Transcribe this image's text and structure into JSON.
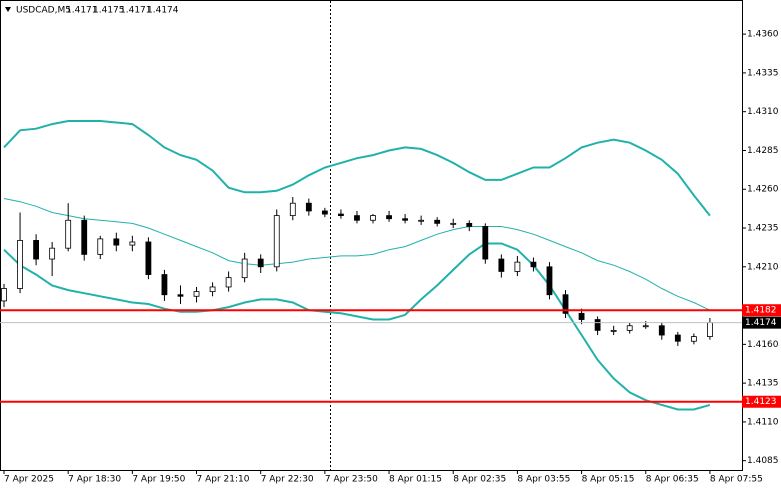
{
  "header": {
    "symbol": "USDCAD,M5",
    "open": 1.4171,
    "high": 1.4175,
    "low": 1.4171,
    "close": 1.4174
  },
  "chart_data": {
    "type": "candlestick",
    "xlim": [
      -1,
      184
    ],
    "ylim": [
      1.4079,
      1.4382
    ],
    "yticks": [
      {
        "value": 1.436,
        "label": "1.4360"
      },
      {
        "value": 1.4335,
        "label": "1.4335"
      },
      {
        "value": 1.431,
        "label": "1.4310"
      },
      {
        "value": 1.4285,
        "label": "1.4285"
      },
      {
        "value": 1.426,
        "label": "1.4260"
      },
      {
        "value": 1.4235,
        "label": "1.4235"
      },
      {
        "value": 1.421,
        "label": "1.4210"
      },
      {
        "value": 1.416,
        "label": "1.4160"
      },
      {
        "value": 1.4135,
        "label": "1.4135"
      },
      {
        "value": 1.411,
        "label": "1.4110"
      },
      {
        "value": 1.4085,
        "label": "1.4085"
      }
    ],
    "xticks": [
      {
        "value": 0,
        "label": "7 Apr 2025"
      },
      {
        "value": 16,
        "label": "7 Apr 18:30"
      },
      {
        "value": 32,
        "label": "7 Apr 19:50"
      },
      {
        "value": 48,
        "label": "7 Apr 21:10"
      },
      {
        "value": 64,
        "label": "7 Apr 22:30"
      },
      {
        "value": 80,
        "label": "7 Apr 23:50"
      },
      {
        "value": 96,
        "label": "8 Apr 01:15"
      },
      {
        "value": 112,
        "label": "8 Apr 02:35"
      },
      {
        "value": 128,
        "label": "8 Apr 03:55"
      },
      {
        "value": 144,
        "label": "8 Apr 05:15"
      },
      {
        "value": 160,
        "label": "8 Apr 06:35"
      },
      {
        "value": 176,
        "label": "8 Apr 07:55"
      }
    ],
    "x": [
      0,
      4,
      8,
      12,
      16,
      20,
      24,
      28,
      32,
      36,
      40,
      44,
      48,
      52,
      56,
      60,
      64,
      68,
      72,
      76,
      80,
      84,
      88,
      92,
      96,
      100,
      104,
      108,
      112,
      116,
      120,
      124,
      128,
      132,
      136,
      140,
      144,
      148,
      152,
      156,
      160,
      164,
      168,
      172,
      176
    ],
    "open": [
      1.4188,
      1.4196,
      1.4227,
      1.4215,
      1.4222,
      1.424,
      1.4218,
      1.4228,
      1.4224,
      1.4226,
      1.4205,
      1.4192,
      1.4191,
      1.4194,
      1.4197,
      1.4203,
      1.4215,
      1.421,
      1.4243,
      1.4251,
      1.4246,
      1.4244,
      1.4243,
      1.424,
      1.4243,
      1.4241,
      1.424,
      1.424,
      1.4238,
      1.4238,
      1.4236,
      1.4215,
      1.4207,
      1.4213,
      1.421,
      1.4192,
      1.418,
      1.4176,
      1.4169,
      1.4169,
      1.4172,
      1.4172,
      1.4166,
      1.4162,
      1.4165
    ],
    "high": [
      1.4199,
      1.4245,
      1.4231,
      1.4226,
      1.4251,
      1.4243,
      1.423,
      1.4232,
      1.423,
      1.4229,
      1.4208,
      1.4198,
      1.4197,
      1.42,
      1.4207,
      1.4219,
      1.4218,
      1.4247,
      1.4255,
      1.4254,
      1.4248,
      1.4247,
      1.4246,
      1.4244,
      1.4246,
      1.4244,
      1.4243,
      1.4242,
      1.4241,
      1.424,
      1.4238,
      1.4218,
      1.4217,
      1.4216,
      1.4213,
      1.4195,
      1.4183,
      1.4178,
      1.4172,
      1.4174,
      1.4175,
      1.4174,
      1.4168,
      1.4167,
      1.4177
    ],
    "low": [
      1.4184,
      1.4193,
      1.4211,
      1.4204,
      1.422,
      1.4214,
      1.4215,
      1.422,
      1.422,
      1.4202,
      1.4188,
      1.4186,
      1.4187,
      1.4191,
      1.4194,
      1.42,
      1.4206,
      1.4207,
      1.424,
      1.4243,
      1.4242,
      1.4241,
      1.4238,
      1.4238,
      1.4239,
      1.4238,
      1.4237,
      1.4236,
      1.4235,
      1.4233,
      1.4212,
      1.4203,
      1.4204,
      1.4207,
      1.4189,
      1.4177,
      1.4173,
      1.4166,
      1.4166,
      1.4167,
      1.417,
      1.4163,
      1.4159,
      1.416,
      1.4163
    ],
    "close": [
      1.4196,
      1.4227,
      1.4215,
      1.4222,
      1.424,
      1.4218,
      1.4228,
      1.4224,
      1.4226,
      1.4205,
      1.4192,
      1.4191,
      1.4194,
      1.4197,
      1.4203,
      1.4215,
      1.421,
      1.4243,
      1.4251,
      1.4246,
      1.4244,
      1.4243,
      1.424,
      1.4243,
      1.4241,
      1.424,
      1.424,
      1.4238,
      1.4238,
      1.4236,
      1.4215,
      1.4207,
      1.4213,
      1.421,
      1.4192,
      1.418,
      1.4176,
      1.4169,
      1.4169,
      1.4172,
      1.4172,
      1.4166,
      1.4162,
      1.4165,
      1.4174
    ],
    "up_color": "#ffffff",
    "down_color": "#000000",
    "bands": [
      {
        "color": "#20b2aa",
        "width": 2,
        "values": [
          1.4287,
          1.4298,
          1.4299,
          1.4302,
          1.4304,
          1.4304,
          1.4304,
          1.4303,
          1.4302,
          1.4295,
          1.4287,
          1.4282,
          1.4279,
          1.4272,
          1.4261,
          1.4258,
          1.4258,
          1.4259,
          1.4263,
          1.4269,
          1.4274,
          1.4277,
          1.428,
          1.4282,
          1.4285,
          1.4287,
          1.4286,
          1.4282,
          1.4277,
          1.4271,
          1.4266,
          1.4266,
          1.427,
          1.4274,
          1.4274,
          1.428,
          1.4287,
          1.429,
          1.4292,
          1.429,
          1.4285,
          1.4279,
          1.427,
          1.4256,
          1.4243
        ]
      },
      {
        "color": "#20b2aa",
        "width": 1,
        "values": [
          1.4254,
          1.4252,
          1.4249,
          1.4245,
          1.4243,
          1.4241,
          1.424,
          1.4239,
          1.4238,
          1.4235,
          1.4231,
          1.4227,
          1.4223,
          1.4219,
          1.4214,
          1.4212,
          1.4211,
          1.4212,
          1.4213,
          1.4215,
          1.4216,
          1.4217,
          1.4217,
          1.4218,
          1.4221,
          1.4223,
          1.4227,
          1.4231,
          1.4234,
          1.4236,
          1.4236,
          1.4236,
          1.4234,
          1.4231,
          1.4227,
          1.4223,
          1.4219,
          1.4214,
          1.4211,
          1.4207,
          1.4202,
          1.4196,
          1.4191,
          1.4187,
          1.4182
        ]
      },
      {
        "color": "#20b2aa",
        "width": 2,
        "values": [
          1.4221,
          1.4211,
          1.4205,
          1.4198,
          1.4195,
          1.4193,
          1.4191,
          1.4189,
          1.4187,
          1.4186,
          1.4183,
          1.4181,
          1.4181,
          1.4182,
          1.4184,
          1.4187,
          1.4189,
          1.4189,
          1.4187,
          1.4182,
          1.4181,
          1.418,
          1.4178,
          1.4176,
          1.4176,
          1.4179,
          1.4189,
          1.4198,
          1.4208,
          1.4218,
          1.4225,
          1.4225,
          1.4221,
          1.4211,
          1.4198,
          1.4182,
          1.4166,
          1.415,
          1.4138,
          1.4129,
          1.4124,
          1.4121,
          1.4118,
          1.4118,
          1.4121
        ]
      }
    ],
    "levels": [
      {
        "value": 1.4182,
        "color": "#ff0000"
      },
      {
        "value": 1.4123,
        "color": "#ff0000"
      }
    ],
    "bid": {
      "value": 1.4174,
      "color": "#c0c0c0"
    }
  }
}
